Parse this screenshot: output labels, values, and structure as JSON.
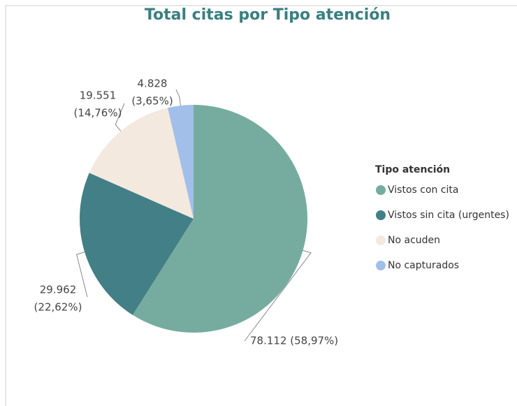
{
  "chart_data": {
    "type": "pie",
    "title": "Total citas por Tipo atención",
    "legend_title": "Tipo atención",
    "legend": "right",
    "categories": [
      "Vistos con cita",
      "Vistos sin cita (urgentes)",
      "No acuden",
      "No capturados"
    ],
    "values": [
      78112,
      29962,
      19551,
      4828
    ],
    "value_labels": [
      [
        "78.112 (58,97%)"
      ],
      [
        "29.962",
        "(22,62%)"
      ],
      [
        "19.551",
        "(14,76%)"
      ],
      [
        "4.828",
        "(3,65%)"
      ]
    ],
    "colors": [
      "#76ac9f",
      "#437f86",
      "#f3e9df",
      "#a2bfe9"
    ]
  }
}
